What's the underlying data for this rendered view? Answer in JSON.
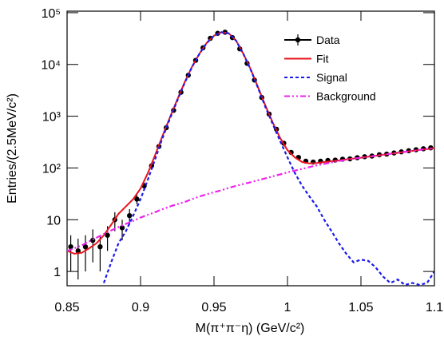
{
  "chart_data": {
    "type": "line",
    "xlabel": "M(π⁺π⁻η) (GeV/c²)",
    "ylabel": "Entries/(2.5MeV/c²)",
    "xlim": [
      0.85,
      1.1
    ],
    "xticks": [
      0.85,
      0.9,
      0.95,
      1,
      1.05,
      1.1
    ],
    "ylim": [
      0.53,
      107000
    ],
    "log_y": true,
    "yticks": [
      1,
      10,
      {
        "value": 100,
        "label": "10²"
      },
      {
        "value": 1000,
        "label": "10³"
      },
      {
        "value": 10000,
        "label": "10⁴"
      },
      {
        "value": 100000,
        "label": "10⁵"
      }
    ],
    "legend": "upper right",
    "series": [
      {
        "name": "Data",
        "color": "#000000",
        "style": "markers",
        "x": [
          0.8525,
          0.8575,
          0.8625,
          0.8675,
          0.8725,
          0.8775,
          0.8825,
          0.8875,
          0.8925,
          0.8975,
          0.9025,
          0.9075,
          0.9125,
          0.9175,
          0.9225,
          0.9275,
          0.9325,
          0.9375,
          0.9425,
          0.9475,
          0.9525,
          0.9575,
          0.9625,
          0.9675,
          0.9725,
          0.9775,
          0.9825,
          0.9875,
          0.9925,
          0.9975,
          1.0025,
          1.0075,
          1.0125,
          1.0175,
          1.0225,
          1.0275,
          1.0325,
          1.0375,
          1.0425,
          1.0475,
          1.0525,
          1.0575,
          1.0625,
          1.0675,
          1.0725,
          1.0775,
          1.0825,
          1.0875,
          1.0925,
          1.0975
        ],
        "values": [
          3,
          2.5,
          3,
          4,
          3,
          5,
          10,
          7,
          12,
          25,
          45,
          110,
          260,
          600,
          1300,
          2900,
          6200,
          12000,
          21000,
          32000,
          40000,
          42000,
          33000,
          20000,
          10500,
          5000,
          2300,
          1100,
          560,
          300,
          200,
          160,
          135,
          130,
          135,
          140,
          142,
          148,
          150,
          158,
          165,
          170,
          180,
          185,
          195,
          205,
          215,
          225,
          235,
          245
        ],
        "errors": [
          2,
          1.8,
          2,
          2.5,
          2,
          2.5,
          4,
          3,
          4,
          5,
          7,
          10,
          16,
          24,
          36,
          54,
          79,
          110,
          145,
          179,
          200,
          205,
          182,
          141,
          102,
          71,
          48,
          33,
          24,
          17,
          14,
          13,
          12,
          11,
          12,
          12,
          12,
          12,
          12,
          13,
          13,
          13,
          13,
          14,
          14,
          14,
          15,
          15,
          15,
          16
        ]
      },
      {
        "name": "Fit",
        "color": "#e8141e",
        "style": "solid",
        "x": [
          0.85,
          0.855,
          0.86,
          0.865,
          0.87,
          0.875,
          0.88,
          0.885,
          0.89,
          0.895,
          0.9,
          0.905,
          0.91,
          0.915,
          0.92,
          0.925,
          0.93,
          0.935,
          0.94,
          0.945,
          0.95,
          0.955,
          0.96,
          0.965,
          0.97,
          0.975,
          0.98,
          0.985,
          0.99,
          0.995,
          1,
          1.005,
          1.01,
          1.015,
          1.02,
          1.025,
          1.03,
          1.035,
          1.04,
          1.045,
          1.05,
          1.055,
          1.06,
          1.065,
          1.07,
          1.075,
          1.08,
          1.085,
          1.09,
          1.095,
          1.1
        ],
        "values": [
          2.5,
          2.2,
          2.3,
          2.8,
          3.5,
          5,
          8,
          13,
          18,
          25,
          40,
          80,
          180,
          420,
          950,
          2100,
          4500,
          9000,
          16000,
          26000,
          36000,
          42000,
          40000,
          29000,
          16000,
          8000,
          3600,
          1600,
          750,
          380,
          220,
          160,
          130,
          122,
          125,
          130,
          135,
          140,
          146,
          152,
          158,
          165,
          172,
          180,
          188,
          196,
          205,
          214,
          223,
          232,
          240
        ]
      },
      {
        "name": "Signal",
        "color": "#1a1aee",
        "style": "dashed",
        "x": [
          0.85,
          0.855,
          0.86,
          0.865,
          0.87,
          0.875,
          0.88,
          0.885,
          0.89,
          0.895,
          0.9,
          0.905,
          0.91,
          0.915,
          0.92,
          0.925,
          0.93,
          0.935,
          0.94,
          0.945,
          0.95,
          0.955,
          0.96,
          0.965,
          0.97,
          0.975,
          0.98,
          0.985,
          0.99,
          0.995,
          1,
          1.005,
          1.01,
          1.015,
          1.02,
          1.025,
          1.03,
          1.035,
          1.04,
          1.045,
          1.05,
          1.055,
          1.06,
          1.065,
          1.07,
          1.075,
          1.08,
          1.085,
          1.09,
          1.095,
          1.1
        ],
        "values": [
          null,
          null,
          null,
          null,
          null,
          0.6,
          1.5,
          3.5,
          6,
          12,
          25,
          60,
          150,
          380,
          900,
          2000,
          4400,
          8900,
          15900,
          25900,
          35900,
          41900,
          39900,
          28900,
          15900,
          7900,
          3500,
          1500,
          700,
          330,
          160,
          80,
          45,
          28,
          18,
          10,
          6,
          3.5,
          2.2,
          1.5,
          1.7,
          1.6,
          1.2,
          0.8,
          0.6,
          0.7,
          0.55,
          0.6,
          0.55,
          0.6,
          1
        ]
      },
      {
        "name": "Background",
        "color": "#ee22ee",
        "style": "dashdot",
        "x": [
          0.85,
          0.855,
          0.86,
          0.865,
          0.87,
          0.875,
          0.88,
          0.885,
          0.89,
          0.895,
          0.9,
          0.905,
          0.91,
          0.915,
          0.92,
          0.925,
          0.93,
          0.935,
          0.94,
          0.945,
          0.95,
          0.955,
          0.96,
          0.965,
          0.97,
          0.975,
          0.98,
          0.985,
          0.99,
          0.995,
          1,
          1.005,
          1.01,
          1.015,
          1.02,
          1.025,
          1.03,
          1.035,
          1.04,
          1.045,
          1.05,
          1.055,
          1.06,
          1.065,
          1.07,
          1.075,
          1.08,
          1.085,
          1.09,
          1.095,
          1.1
        ],
        "values": [
          2.5,
          2.8,
          3.2,
          3.8,
          4.5,
          5.3,
          6.2,
          7.2,
          8.3,
          9.5,
          11,
          12.5,
          14,
          16,
          18,
          20,
          22,
          25,
          28,
          31,
          34,
          37,
          41,
          45,
          49,
          53,
          58,
          63,
          69,
          75,
          82,
          89,
          96,
          104,
          112,
          120,
          128,
          136,
          144,
          151,
          158,
          165,
          172,
          180,
          188,
          196,
          205,
          214,
          223,
          232,
          240
        ]
      }
    ]
  }
}
